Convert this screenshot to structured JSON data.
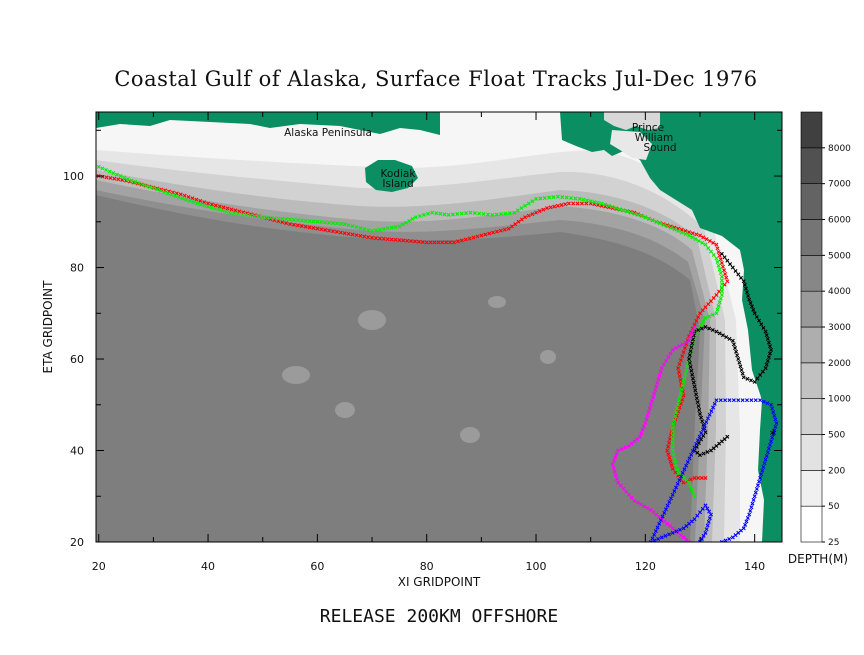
{
  "chart_data": {
    "type": "map",
    "title": "Coastal Gulf of Alaska, Surface Float Tracks Jul-Dec 1976",
    "caption": "RELEASE 200KM OFFSHORE",
    "xlabel": "XI GRIDPOINT",
    "ylabel": "ETA GRIDPOINT",
    "xlim": [
      19.5,
      145
    ],
    "ylim": [
      20,
      114
    ],
    "xticks": [
      20,
      40,
      60,
      80,
      100,
      120,
      140
    ],
    "yticks": [
      20,
      40,
      60,
      80,
      100
    ],
    "colorbar": {
      "label": "DEPTH(M)",
      "levels": [
        "25",
        "50",
        "200",
        "500",
        "1000",
        "2000",
        "3000",
        "4000",
        "5000",
        "6000",
        "7000",
        "8000"
      ],
      "colors": [
        "#ffffff",
        "#f0f0f0",
        "#e2e2e2",
        "#d2d2d2",
        "#c2c2c2",
        "#aeaeae",
        "#9a9a9a",
        "#878787",
        "#757575",
        "#636363",
        "#515151",
        "#404040"
      ]
    },
    "land_color": "#0b8f62",
    "place_labels": [
      "Alaska Peninsula",
      "Kodiak",
      "Island",
      "Prince",
      "William",
      "Sound"
    ],
    "series": [
      {
        "color": "#ff0000",
        "points": [
          [
            20,
            100
          ],
          [
            25,
            99
          ],
          [
            30,
            97.5
          ],
          [
            35,
            96
          ],
          [
            40,
            94
          ],
          [
            45,
            92.5
          ],
          [
            50,
            91
          ],
          [
            55,
            89.5
          ],
          [
            60,
            88.5
          ],
          [
            65,
            87.5
          ],
          [
            70,
            86.5
          ],
          [
            75,
            86
          ],
          [
            80,
            85.5
          ],
          [
            85,
            85.5
          ],
          [
            90,
            87
          ],
          [
            95,
            88.5
          ],
          [
            98,
            91
          ],
          [
            102,
            93
          ],
          [
            106,
            94
          ],
          [
            110,
            94
          ],
          [
            114,
            93
          ],
          [
            118,
            92
          ],
          [
            122,
            90
          ],
          [
            126,
            88.5
          ],
          [
            130,
            87
          ],
          [
            133,
            85
          ],
          [
            134,
            81
          ],
          [
            135,
            77
          ],
          [
            133,
            74
          ],
          [
            130,
            70
          ],
          [
            128,
            65
          ],
          [
            126,
            58
          ],
          [
            127,
            52
          ],
          [
            125,
            45
          ],
          [
            124,
            40
          ],
          [
            125,
            36
          ],
          [
            127,
            33
          ],
          [
            129,
            34
          ],
          [
            131,
            34
          ]
        ]
      },
      {
        "color": "#00ee00",
        "points": [
          [
            20,
            102
          ],
          [
            26,
            99
          ],
          [
            32,
            96.5
          ],
          [
            38,
            94
          ],
          [
            44,
            92
          ],
          [
            50,
            91
          ],
          [
            55,
            90.5
          ],
          [
            60,
            90
          ],
          [
            65,
            89.5
          ],
          [
            70,
            88
          ],
          [
            75,
            89
          ],
          [
            78,
            91
          ],
          [
            81,
            92
          ],
          [
            84,
            91.5
          ],
          [
            88,
            92
          ],
          [
            92,
            91.5
          ],
          [
            96,
            92
          ],
          [
            100,
            95
          ],
          [
            104,
            95.5
          ],
          [
            108,
            95
          ],
          [
            112,
            94
          ],
          [
            116,
            92.5
          ],
          [
            120,
            91
          ],
          [
            124,
            89
          ],
          [
            128,
            87
          ],
          [
            131,
            85
          ],
          [
            133,
            82
          ],
          [
            134,
            78
          ],
          [
            134,
            74
          ],
          [
            133,
            70
          ],
          [
            131,
            69
          ],
          [
            129,
            65
          ],
          [
            128,
            60
          ],
          [
            127,
            55
          ],
          [
            126,
            50
          ],
          [
            125,
            45
          ],
          [
            125,
            40
          ],
          [
            126,
            35
          ],
          [
            128,
            33
          ],
          [
            129,
            30
          ]
        ]
      },
      {
        "color": "#000000",
        "points": [
          [
            134,
            83
          ],
          [
            136,
            80
          ],
          [
            138,
            77
          ],
          [
            139,
            73
          ],
          [
            140,
            70
          ],
          [
            142,
            66
          ],
          [
            143,
            62
          ],
          [
            142,
            58
          ],
          [
            140,
            55
          ],
          [
            138,
            56
          ],
          [
            137,
            60
          ],
          [
            136,
            64
          ],
          [
            133,
            66
          ],
          [
            131,
            67
          ],
          [
            129,
            66
          ],
          [
            128,
            60
          ],
          [
            129,
            54
          ],
          [
            130,
            48
          ],
          [
            131,
            44
          ],
          [
            129,
            40
          ],
          [
            130,
            39
          ],
          [
            132,
            40
          ],
          [
            134,
            42
          ],
          [
            135,
            43
          ]
        ]
      },
      {
        "color": "#ff00ff",
        "points": [
          [
            129,
            67
          ],
          [
            128,
            64
          ],
          [
            125,
            62
          ],
          [
            123,
            58
          ],
          [
            122,
            54
          ],
          [
            121,
            50
          ],
          [
            120,
            46
          ],
          [
            119,
            43
          ],
          [
            117,
            41
          ],
          [
            115,
            40
          ],
          [
            114,
            37
          ],
          [
            115,
            33
          ],
          [
            118,
            29
          ],
          [
            121,
            27
          ],
          [
            123,
            25
          ],
          [
            125,
            23
          ],
          [
            127,
            21
          ],
          [
            128,
            20
          ]
        ]
      },
      {
        "color": "#0000ff",
        "points": [
          [
            130,
            20
          ],
          [
            131,
            22
          ],
          [
            132,
            26
          ],
          [
            131,
            28
          ],
          [
            129,
            25
          ],
          [
            127,
            23
          ],
          [
            125,
            22
          ],
          [
            123,
            21
          ],
          [
            121,
            20
          ],
          [
            133,
            51
          ],
          [
            137,
            51
          ],
          [
            141,
            51
          ],
          [
            143,
            50
          ],
          [
            144,
            46
          ],
          [
            143,
            42
          ],
          [
            142,
            38
          ],
          [
            141,
            34
          ],
          [
            140,
            30
          ],
          [
            139,
            26
          ],
          [
            138,
            23
          ],
          [
            136,
            21
          ],
          [
            134,
            20
          ]
        ]
      }
    ]
  }
}
